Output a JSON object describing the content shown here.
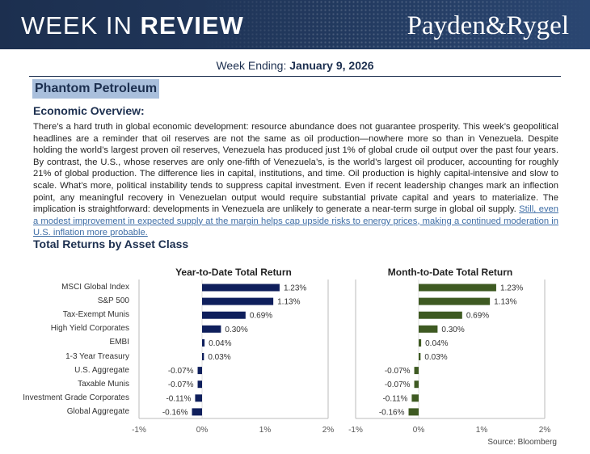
{
  "header": {
    "title_light": "WEEK IN ",
    "title_bold": "REVIEW",
    "brand": "Payden&Rygel"
  },
  "week": {
    "label": "Week Ending: ",
    "date": "January 9, 2026"
  },
  "topic": "Phantom Petroleum",
  "overview": {
    "heading": "Economic Overview:",
    "body": "There’s a hard truth in global economic development: resource abundance does not guarantee prosperity. This week’s geopolitical headlines are a reminder that oil reserves are not the same as oil production—nowhere more so than in Venezuela. Despite holding the world’s largest proven oil reserves, Venezuela has produced just 1% of global crude oil output over the past four years. By contrast, the U.S., whose reserves are only one-fifth of Venezuela’s, is the world’s largest oil producer, accounting for roughly 21% of global production. The difference lies in capital, institutions, and time. Oil production is highly capital-intensive and slow to scale. What’s more, political instability tends to suppress capital investment. Even if recent leadership changes mark an inflection point, any meaningful recovery in Venezuelan output would require substantial private capital and years to materialize. The implication is straightforward: developments in Venezuela are unlikely to generate a near-term surge in global oil supply. ",
    "link": "Still, even a modest improvement in expected supply at the margin helps cap upside risks to energy prices, making a continued moderation in U.S. inflation more probable."
  },
  "returns_heading": "Total Returns by Asset Class",
  "source": "Source: Bloomberg",
  "chart_data": [
    {
      "type": "bar",
      "orientation": "horizontal",
      "title": "Year-to-Date Total Return",
      "categories": [
        "MSCI Global Index",
        "S&P 500",
        "Tax-Exempt Munis",
        "High Yield Corporates",
        "EMBI",
        "1-3 Year Treasury",
        "U.S. Aggregate",
        "Taxable Munis",
        "Investment Grade Corporates",
        "Global Aggregate"
      ],
      "values": [
        1.23,
        1.13,
        0.69,
        0.3,
        0.04,
        0.03,
        -0.07,
        -0.07,
        -0.11,
        -0.16
      ],
      "labels": [
        "1.23%",
        "1.13%",
        "0.69%",
        "0.30%",
        "0.04%",
        "0.03%",
        "-0.07%",
        "-0.07%",
        "-0.11%",
        "-0.16%"
      ],
      "xlim": [
        -1,
        2
      ],
      "xticks": [
        "-1%",
        "0%",
        "1%",
        "2%"
      ],
      "color": "#0f1f5c"
    },
    {
      "type": "bar",
      "orientation": "horizontal",
      "title": "Month-to-Date Total Return",
      "categories": [
        "MSCI Global Index",
        "S&P 500",
        "Tax-Exempt Munis",
        "High Yield Corporates",
        "EMBI",
        "1-3 Year Treasury",
        "U.S. Aggregate",
        "Taxable Munis",
        "Investment Grade Corporates",
        "Global Aggregate"
      ],
      "values": [
        1.23,
        1.13,
        0.69,
        0.3,
        0.04,
        0.03,
        -0.07,
        -0.07,
        -0.11,
        -0.16
      ],
      "labels": [
        "1.23%",
        "1.13%",
        "0.69%",
        "0.30%",
        "0.04%",
        "0.03%",
        "-0.07%",
        "-0.07%",
        "-0.11%",
        "-0.16%"
      ],
      "xlim": [
        -1,
        2
      ],
      "xticks": [
        "-1%",
        "0%",
        "1%",
        "2%"
      ],
      "color": "#3e5a22"
    }
  ]
}
